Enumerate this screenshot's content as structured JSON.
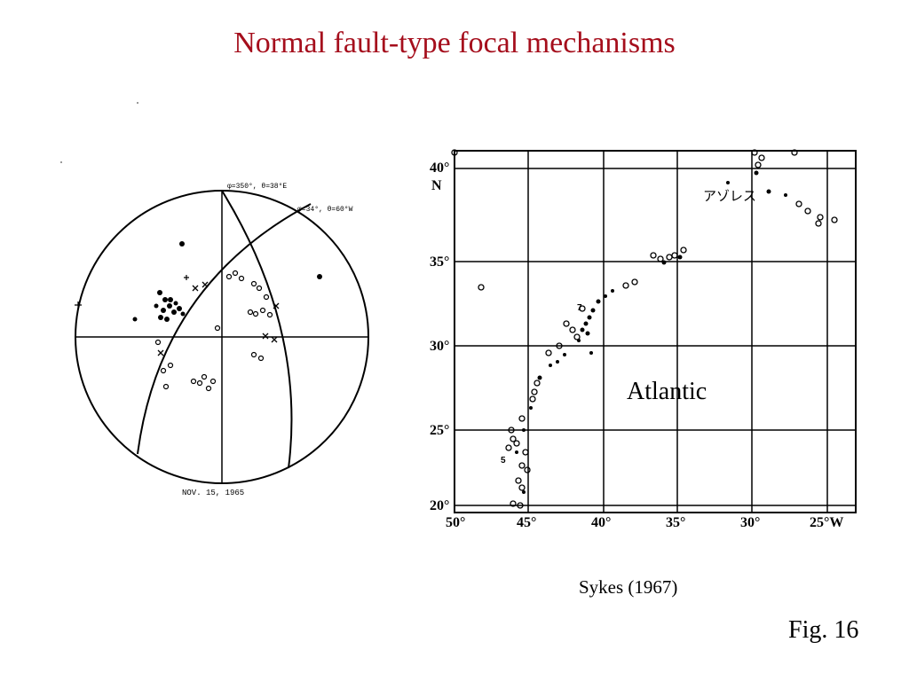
{
  "title": "Normal fault-type focal mechanisms",
  "stereonet": {
    "top_label": "φ=350°, θ=38°E",
    "right_label": "φ=34°, θ=60°W",
    "date_label": "NOV. 15, 1965"
  },
  "map": {
    "y_ticks": [
      "40°",
      "35°",
      "30°",
      "25°",
      "20°"
    ],
    "y_unit": "N",
    "x_ticks": [
      "50°",
      "45°",
      "40°",
      "35°",
      "30°",
      "25°W"
    ],
    "azores_label": "アゾレス",
    "small_labels": [
      "7",
      "5"
    ]
  },
  "atlantic_label": "Atlantic",
  "credit": "Sykes (1967)",
  "fig_number": "Fig. 16"
}
